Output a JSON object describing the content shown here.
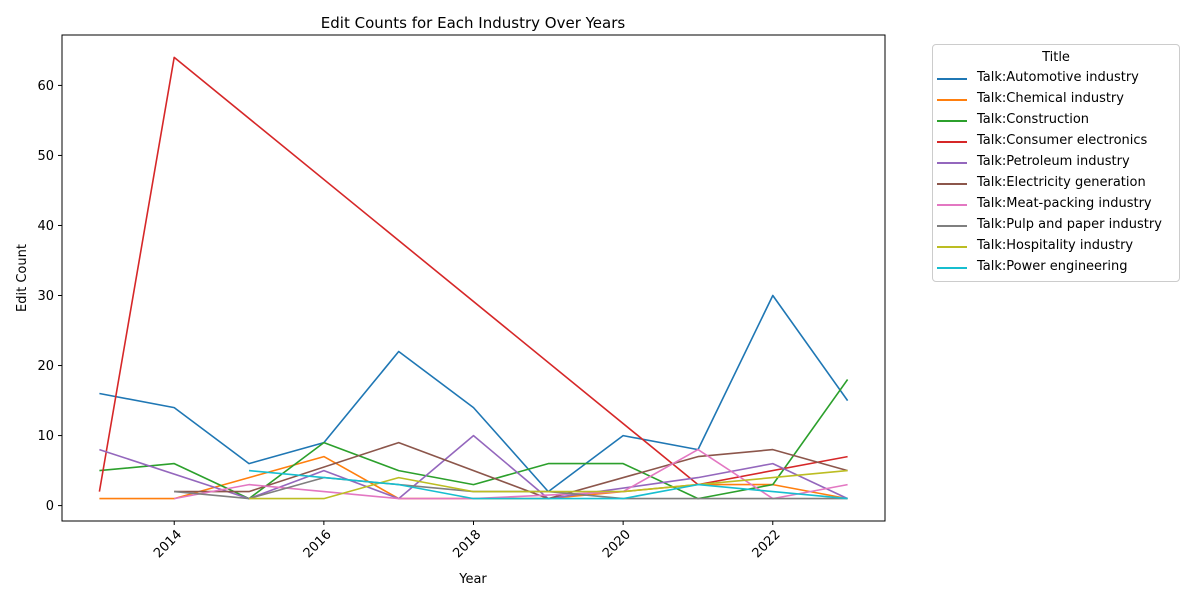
{
  "chart_data": {
    "type": "line",
    "title": "Edit Counts for Each Industry Over Years",
    "xlabel": "Year",
    "ylabel": "Edit Count",
    "xlim": [
      2012.5,
      2023.5
    ],
    "ylim": [
      -2.2,
      67.2
    ],
    "x_ticks": [
      2014,
      2016,
      2018,
      2020,
      2022
    ],
    "y_ticks": [
      0,
      10,
      20,
      30,
      40,
      50,
      60
    ],
    "grid": false,
    "legend": {
      "title": "Title",
      "placement": "outside-top-right"
    },
    "series": [
      {
        "name": "Talk:Automotive industry",
        "color": "#1f77b4",
        "points": [
          [
            2013,
            16
          ],
          [
            2014,
            14
          ],
          [
            2015,
            6
          ],
          [
            2016,
            9
          ],
          [
            2017,
            22
          ],
          [
            2018,
            14
          ],
          [
            2019,
            2
          ],
          [
            2020,
            10
          ],
          [
            2021,
            8
          ],
          [
            2022,
            30
          ],
          [
            2023,
            15
          ]
        ]
      },
      {
        "name": "Talk:Chemical industry",
        "color": "#ff7f0e",
        "points": [
          [
            2013,
            1
          ],
          [
            2014,
            1
          ],
          [
            2015,
            4
          ],
          [
            2016,
            7
          ],
          [
            2017,
            1
          ],
          [
            2018,
            1
          ],
          [
            2019,
            1
          ],
          [
            2020,
            2
          ],
          [
            2021,
            3
          ],
          [
            2022,
            3
          ],
          [
            2023,
            1
          ]
        ]
      },
      {
        "name": "Talk:Construction",
        "color": "#2ca02c",
        "points": [
          [
            2013,
            5
          ],
          [
            2014,
            6
          ],
          [
            2015,
            1
          ],
          [
            2016,
            9
          ],
          [
            2017,
            5
          ],
          [
            2018,
            3
          ],
          [
            2019,
            6
          ],
          [
            2020,
            6
          ],
          [
            2021,
            1
          ],
          [
            2022,
            3
          ],
          [
            2023,
            18
          ]
        ]
      },
      {
        "name": "Talk:Consumer electronics",
        "color": "#d62728",
        "points": [
          [
            2013,
            2
          ],
          [
            2014,
            64
          ],
          [
            2021,
            3
          ],
          [
            2023,
            7
          ]
        ]
      },
      {
        "name": "Talk:Petroleum industry",
        "color": "#9467bd",
        "points": [
          [
            2013,
            8
          ],
          [
            2015,
            1
          ],
          [
            2016,
            5
          ],
          [
            2017,
            1
          ],
          [
            2018,
            10
          ],
          [
            2019,
            1
          ],
          [
            2021,
            4
          ],
          [
            2022,
            6
          ],
          [
            2023,
            1
          ]
        ]
      },
      {
        "name": "Talk:Electricity generation",
        "color": "#8c564b",
        "points": [
          [
            2014,
            2
          ],
          [
            2015,
            2
          ],
          [
            2017,
            9
          ],
          [
            2019,
            1
          ],
          [
            2021,
            7
          ],
          [
            2022,
            8
          ],
          [
            2023,
            5
          ]
        ]
      },
      {
        "name": "Talk:Meat-packing industry",
        "color": "#e377c2",
        "points": [
          [
            2014,
            1
          ],
          [
            2015,
            3
          ],
          [
            2016,
            2
          ],
          [
            2017,
            1
          ],
          [
            2018,
            1
          ],
          [
            2020,
            2
          ],
          [
            2021,
            8
          ],
          [
            2022,
            1
          ],
          [
            2023,
            3
          ]
        ]
      },
      {
        "name": "Talk:Pulp and paper industry",
        "color": "#7f7f7f",
        "points": [
          [
            2014,
            2
          ],
          [
            2015,
            1
          ],
          [
            2016,
            4
          ],
          [
            2018,
            2
          ],
          [
            2019,
            2
          ],
          [
            2020,
            1
          ],
          [
            2022,
            1
          ],
          [
            2023,
            1
          ]
        ]
      },
      {
        "name": "Talk:Hospitality industry",
        "color": "#bcbd22",
        "points": [
          [
            2015,
            1
          ],
          [
            2016,
            1
          ],
          [
            2017,
            4
          ],
          [
            2018,
            2
          ],
          [
            2019,
            2
          ],
          [
            2020,
            2
          ],
          [
            2021,
            3
          ],
          [
            2022,
            4
          ],
          [
            2023,
            5
          ]
        ]
      },
      {
        "name": "Talk:Power engineering",
        "color": "#17becf",
        "points": [
          [
            2015,
            5
          ],
          [
            2016,
            4
          ],
          [
            2017,
            3
          ],
          [
            2018,
            1
          ],
          [
            2019,
            1
          ],
          [
            2020,
            1
          ],
          [
            2021,
            3
          ],
          [
            2022,
            2
          ],
          [
            2023,
            1
          ]
        ]
      }
    ]
  }
}
